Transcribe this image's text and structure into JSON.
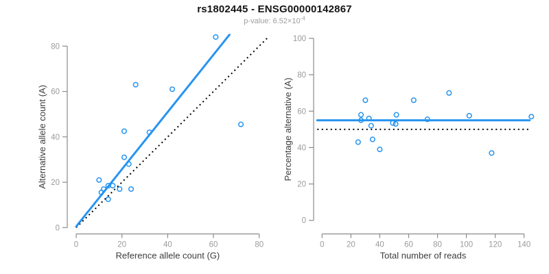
{
  "page": {
    "title": "rs1802445 - ENSG00000142867",
    "subtitle_prefix": "p-value: 6.52×10",
    "subtitle_exponent": "-4"
  },
  "colors": {
    "accent_blue": "#2694F1",
    "identity_line": "#000000",
    "axis": "#8a8a8a",
    "tick_label": "#9a9a9a",
    "axis_title": "#3d3d3d"
  },
  "chart_data": [
    {
      "type": "scatter",
      "name": "allele-counts",
      "title": "",
      "xlabel": "Reference allele count (G)",
      "ylabel": "Alternative allele count (A)",
      "xlim": [
        0,
        80
      ],
      "ylim": [
        0,
        80
      ],
      "xticks": [
        0,
        20,
        40,
        60,
        80
      ],
      "yticks": [
        0,
        20,
        40,
        60,
        80
      ],
      "grid": false,
      "legend": null,
      "points": [
        [
          61,
          84
        ],
        [
          26,
          63
        ],
        [
          42,
          61
        ],
        [
          21,
          42.5
        ],
        [
          32,
          42
        ],
        [
          72,
          45.5
        ],
        [
          21,
          31
        ],
        [
          23,
          28
        ],
        [
          10,
          21
        ],
        [
          14,
          18.5
        ],
        [
          16,
          18.5
        ],
        [
          12,
          17
        ],
        [
          19,
          17
        ],
        [
          24,
          17
        ],
        [
          11,
          15.5
        ],
        [
          14,
          12.5
        ]
      ],
      "fit_line": {
        "x1": 0,
        "y1": 0.5,
        "x2": 67,
        "y2": 85
      },
      "identity_line": {
        "x1": 0,
        "y1": 0,
        "x2": 83.5,
        "y2": 83.5
      }
    },
    {
      "type": "scatter",
      "name": "percentage-vs-reads",
      "title": "",
      "xlabel": "Total number of reads",
      "ylabel": "Percentage alternative (A)",
      "xlim": [
        0,
        145
      ],
      "ylim": [
        0,
        100
      ],
      "xticks": [
        0,
        20,
        40,
        60,
        80,
        100,
        120,
        140
      ],
      "yticks": [
        0,
        20,
        40,
        60,
        80,
        100
      ],
      "grid": false,
      "legend": null,
      "points": [
        [
          88,
          70
        ],
        [
          30,
          66
        ],
        [
          63.5,
          66
        ],
        [
          51.5,
          58
        ],
        [
          27,
          58
        ],
        [
          32.5,
          56
        ],
        [
          27,
          55
        ],
        [
          73,
          55.5
        ],
        [
          102,
          57.5
        ],
        [
          145,
          57
        ],
        [
          49,
          53.5
        ],
        [
          51,
          53
        ],
        [
          34,
          52
        ],
        [
          35,
          44.5
        ],
        [
          25,
          43
        ],
        [
          40,
          39
        ],
        [
          117.5,
          37
        ]
      ],
      "mean_line_y": 55,
      "reference_line_y": 50
    }
  ]
}
